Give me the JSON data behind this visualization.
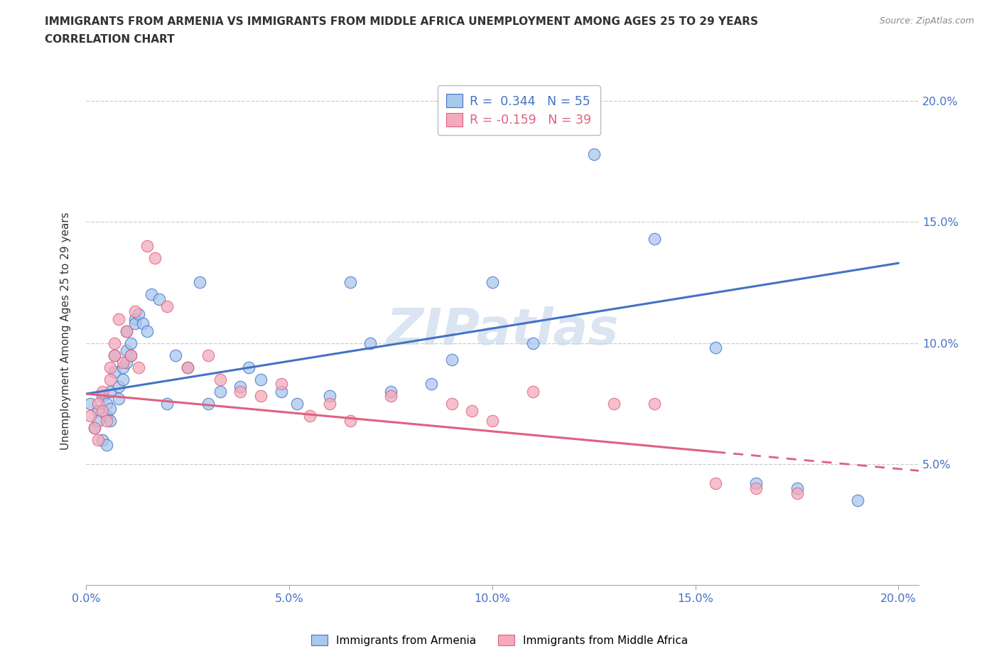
{
  "title_line1": "IMMIGRANTS FROM ARMENIA VS IMMIGRANTS FROM MIDDLE AFRICA UNEMPLOYMENT AMONG AGES 25 TO 29 YEARS",
  "title_line2": "CORRELATION CHART",
  "source": "Source: ZipAtlas.com",
  "ylabel": "Unemployment Among Ages 25 to 29 years",
  "xlim": [
    0.0,
    0.205
  ],
  "ylim": [
    0.0,
    0.21
  ],
  "xticks": [
    0.0,
    0.05,
    0.1,
    0.15,
    0.2
  ],
  "yticks": [
    0.05,
    0.1,
    0.15,
    0.2
  ],
  "xticklabels": [
    "0.0%",
    "5.0%",
    "10.0%",
    "15.0%",
    "20.0%"
  ],
  "yticklabels": [
    "5.0%",
    "10.0%",
    "15.0%",
    "20.0%"
  ],
  "color_armenia": "#A8C8EE",
  "color_middle_africa": "#F4AABB",
  "line_color_armenia": "#4472C4",
  "line_color_middle_africa": "#E06080",
  "R_armenia": 0.344,
  "N_armenia": 55,
  "R_middle_africa": -0.159,
  "N_middle_africa": 39,
  "arm_line_start_y": 0.079,
  "arm_line_end_y": 0.133,
  "ma_line_start_y": 0.079,
  "ma_line_end_y": 0.048,
  "armenia_x": [
    0.001,
    0.002,
    0.003,
    0.003,
    0.004,
    0.004,
    0.005,
    0.005,
    0.005,
    0.006,
    0.006,
    0.006,
    0.007,
    0.007,
    0.008,
    0.008,
    0.009,
    0.009,
    0.01,
    0.01,
    0.01,
    0.011,
    0.011,
    0.012,
    0.012,
    0.013,
    0.014,
    0.015,
    0.016,
    0.018,
    0.02,
    0.022,
    0.025,
    0.028,
    0.03,
    0.033,
    0.038,
    0.04,
    0.043,
    0.048,
    0.052,
    0.06,
    0.065,
    0.07,
    0.075,
    0.085,
    0.09,
    0.1,
    0.11,
    0.125,
    0.14,
    0.155,
    0.165,
    0.175,
    0.19
  ],
  "armenia_y": [
    0.075,
    0.065,
    0.072,
    0.068,
    0.06,
    0.078,
    0.07,
    0.075,
    0.058,
    0.08,
    0.073,
    0.068,
    0.095,
    0.088,
    0.082,
    0.077,
    0.09,
    0.085,
    0.092,
    0.097,
    0.105,
    0.1,
    0.095,
    0.11,
    0.108,
    0.112,
    0.108,
    0.105,
    0.12,
    0.118,
    0.075,
    0.095,
    0.09,
    0.125,
    0.075,
    0.08,
    0.082,
    0.09,
    0.085,
    0.08,
    0.075,
    0.078,
    0.125,
    0.1,
    0.08,
    0.083,
    0.093,
    0.125,
    0.1,
    0.178,
    0.143,
    0.098,
    0.042,
    0.04,
    0.035
  ],
  "middle_africa_x": [
    0.001,
    0.002,
    0.003,
    0.003,
    0.004,
    0.004,
    0.005,
    0.006,
    0.006,
    0.007,
    0.007,
    0.008,
    0.009,
    0.01,
    0.011,
    0.012,
    0.013,
    0.015,
    0.017,
    0.02,
    0.025,
    0.03,
    0.033,
    0.038,
    0.043,
    0.048,
    0.055,
    0.06,
    0.065,
    0.075,
    0.09,
    0.095,
    0.1,
    0.11,
    0.13,
    0.14,
    0.155,
    0.165,
    0.175
  ],
  "middle_africa_y": [
    0.07,
    0.065,
    0.075,
    0.06,
    0.072,
    0.08,
    0.068,
    0.09,
    0.085,
    0.095,
    0.1,
    0.11,
    0.092,
    0.105,
    0.095,
    0.113,
    0.09,
    0.14,
    0.135,
    0.115,
    0.09,
    0.095,
    0.085,
    0.08,
    0.078,
    0.083,
    0.07,
    0.075,
    0.068,
    0.078,
    0.075,
    0.072,
    0.068,
    0.08,
    0.075,
    0.075,
    0.042,
    0.04,
    0.038
  ],
  "watermark": "ZIPatlas",
  "title_color": "#333333",
  "tick_color": "#4472C4",
  "grid_color": "#CCCCCC",
  "background_color": "#FFFFFF"
}
